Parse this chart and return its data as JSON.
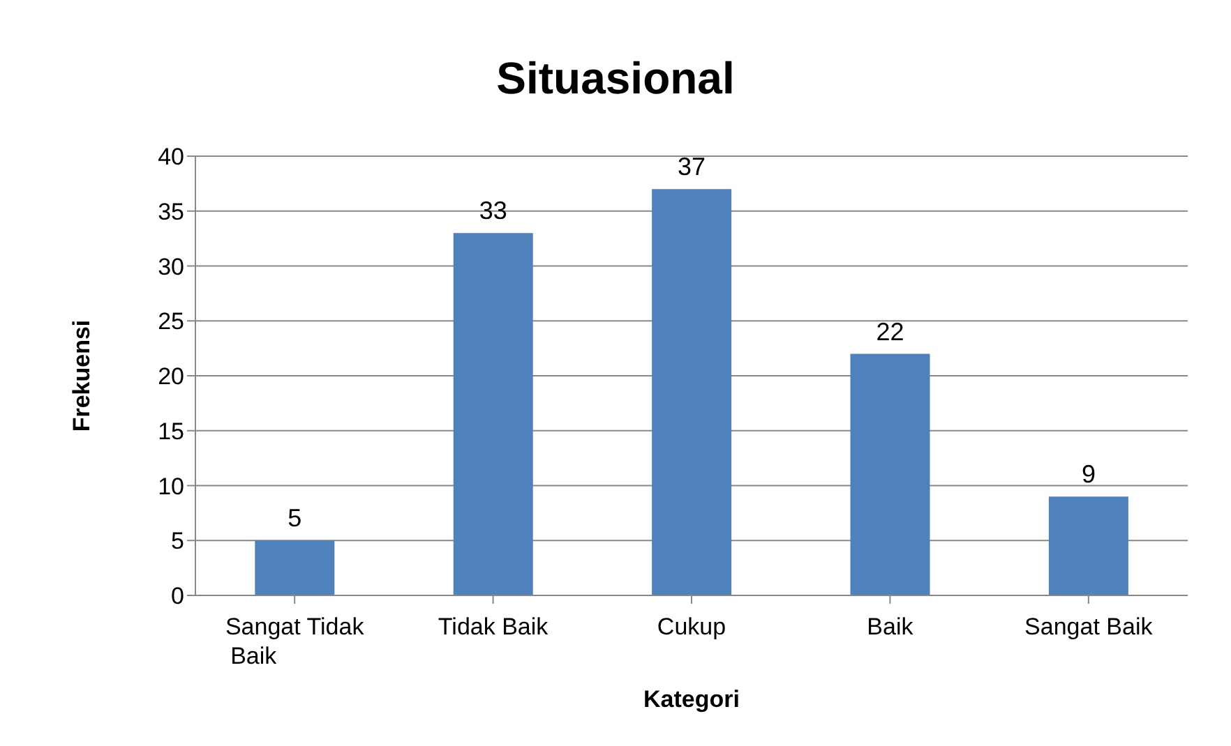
{
  "chart_data": {
    "type": "bar",
    "title": "Situasional",
    "xlabel": "Kategori",
    "ylabel": "Frekuensi",
    "categories": [
      "Sangat Tidak Baik",
      "Tidak Baik",
      "Cukup",
      "Baik",
      "Sangat Baik"
    ],
    "values": [
      5,
      33,
      37,
      22,
      9
    ],
    "color": "#4f81bd",
    "ylim": [
      0,
      40
    ],
    "yticks": [
      0,
      5,
      10,
      15,
      20,
      25,
      30,
      35,
      40
    ],
    "grid": "y",
    "data_labels": true,
    "legend": false
  }
}
